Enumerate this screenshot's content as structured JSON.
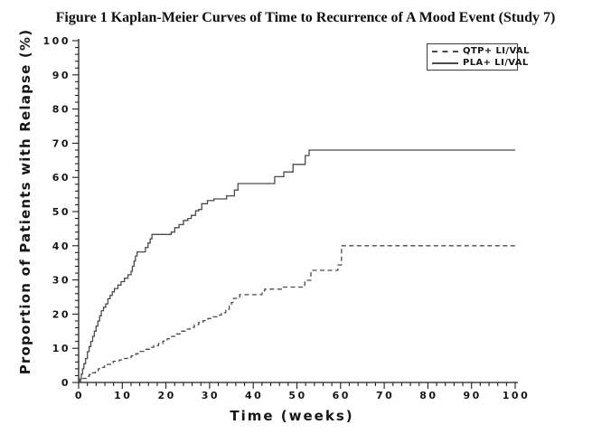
{
  "figure": {
    "title": "Figure 1  Kaplan-Meier Curves of Time to Recurrence of A Mood Event (Study 7)"
  },
  "colors": {
    "background": "#ffffff",
    "text": "#161616",
    "axis": "#1f1f1f",
    "curve": "#4a4a4a",
    "legend_border": "#3c3c3c"
  },
  "chart_data": {
    "type": "line",
    "subtype": "kaplan-meier-step",
    "title": "Figure 1  Kaplan-Meier Curves of Time to Recurrence of A Mood Event (Study 7)",
    "xlabel": "Time (weeks)",
    "ylabel": "Proportion of Patients with Relapse (%)",
    "xlim": [
      0,
      100
    ],
    "ylim": [
      0,
      100
    ],
    "x_ticks": [
      0,
      10,
      20,
      30,
      40,
      50,
      60,
      70,
      80,
      90,
      100
    ],
    "y_ticks": [
      0,
      10,
      20,
      30,
      40,
      50,
      60,
      70,
      80,
      90,
      100
    ],
    "minor_tick_step": 2,
    "grid": false,
    "legend_position": "top-right",
    "series": [
      {
        "name": "QTP+ LI/VAL",
        "line_style": "dashed",
        "color": "#4a4a4a",
        "points": [
          [
            0,
            0
          ],
          [
            0.4,
            0.5
          ],
          [
            1,
            1.2
          ],
          [
            1.7,
            1.8
          ],
          [
            2.4,
            2.3
          ],
          [
            3.1,
            2.8
          ],
          [
            3.8,
            3.4
          ],
          [
            4.5,
            4
          ],
          [
            5.2,
            4.4
          ],
          [
            5.9,
            4.8
          ],
          [
            6.6,
            5.3
          ],
          [
            7.3,
            5.8
          ],
          [
            7.9,
            6.2
          ],
          [
            9.3,
            6.6
          ],
          [
            10.2,
            7
          ],
          [
            11.2,
            7.4
          ],
          [
            12.1,
            7.8
          ],
          [
            13.1,
            8.4
          ],
          [
            14.1,
            9.1
          ],
          [
            15.1,
            9.7
          ],
          [
            16.2,
            10.3
          ],
          [
            17.2,
            10.8
          ],
          [
            18.3,
            11.4
          ],
          [
            19.3,
            12.1
          ],
          [
            20.3,
            12.8
          ],
          [
            21.3,
            13.5
          ],
          [
            22.4,
            14.2
          ],
          [
            23.4,
            15
          ],
          [
            24.5,
            15.6
          ],
          [
            25.5,
            16.1
          ],
          [
            26.5,
            16.9
          ],
          [
            27.5,
            17.6
          ],
          [
            28.5,
            18.1
          ],
          [
            29.6,
            18.7
          ],
          [
            30.6,
            19.2
          ],
          [
            31.7,
            19.7
          ],
          [
            32.7,
            20.4
          ],
          [
            33.7,
            21.4
          ],
          [
            34.5,
            22.4
          ],
          [
            35,
            23.4
          ],
          [
            35.5,
            24.6
          ],
          [
            36.9,
            25.7
          ],
          [
            42,
            26.8
          ],
          [
            42.6,
            27.3
          ],
          [
            46.9,
            27.9
          ],
          [
            51.8,
            29.9
          ],
          [
            53.2,
            32.8
          ],
          [
            59.4,
            34.4
          ],
          [
            60.2,
            40
          ],
          [
            100,
            40
          ]
        ]
      },
      {
        "name": "PLA+ LI/VAL",
        "line_style": "solid",
        "color": "#4a4a4a",
        "points": [
          [
            0,
            0
          ],
          [
            0.3,
            1
          ],
          [
            0.6,
            2.5
          ],
          [
            0.9,
            4
          ],
          [
            1.2,
            5.5
          ],
          [
            1.6,
            7
          ],
          [
            2,
            9
          ],
          [
            2.4,
            10.5
          ],
          [
            2.8,
            12
          ],
          [
            3.2,
            13.5
          ],
          [
            3.6,
            15
          ],
          [
            4,
            16.5
          ],
          [
            4.4,
            18
          ],
          [
            4.8,
            19.5
          ],
          [
            5.2,
            21
          ],
          [
            5.7,
            22
          ],
          [
            6.2,
            23
          ],
          [
            6.7,
            24.5
          ],
          [
            7.2,
            25.5
          ],
          [
            7.7,
            26.5
          ],
          [
            8.2,
            27.5
          ],
          [
            9,
            28.5
          ],
          [
            9.7,
            29.5
          ],
          [
            10.5,
            30.5
          ],
          [
            11.3,
            31.5
          ],
          [
            12,
            32.5
          ],
          [
            12.3,
            34
          ],
          [
            12.7,
            35.5
          ],
          [
            13,
            37
          ],
          [
            13.4,
            38.2
          ],
          [
            15.3,
            39.5
          ],
          [
            15.9,
            40.8
          ],
          [
            16.4,
            42
          ],
          [
            16.8,
            43.3
          ],
          [
            21.2,
            44
          ],
          [
            22,
            45.3
          ],
          [
            23,
            46.2
          ],
          [
            24,
            47.4
          ],
          [
            25,
            48
          ],
          [
            25.8,
            48.9
          ],
          [
            26.8,
            50.2
          ],
          [
            27.5,
            50.6
          ],
          [
            28.2,
            52.3
          ],
          [
            29.5,
            53.2
          ],
          [
            31,
            53.7
          ],
          [
            33.9,
            54.6
          ],
          [
            35.7,
            56.3
          ],
          [
            36.5,
            58.2
          ],
          [
            44.9,
            60.2
          ],
          [
            47,
            61.6
          ],
          [
            49.1,
            63.8
          ],
          [
            51.9,
            66.4
          ],
          [
            52.8,
            68
          ],
          [
            100,
            68
          ]
        ]
      }
    ]
  }
}
